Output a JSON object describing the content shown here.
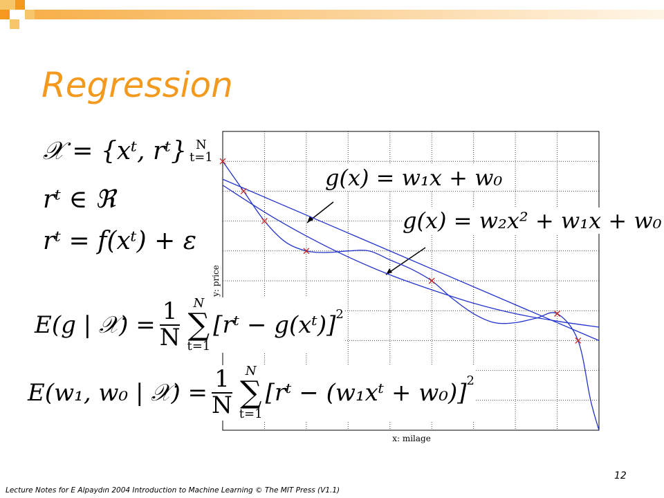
{
  "header": {
    "title": "Regression"
  },
  "formulas": {
    "sample": {
      "lhs": "𝒳 = {xᵗ, rᵗ}",
      "sup": "N",
      "sub": "t=1"
    },
    "real": "rᵗ ∈ ℜ",
    "noise": "rᵗ = f(xᵗ) + ε",
    "error": {
      "lhs": "E(g | 𝒳) =",
      "num": "1",
      "den": "N",
      "sum_top": "N",
      "sum": "∑",
      "sum_bottom": "t=1",
      "body": "[rᵗ − g(xᵗ)]",
      "power": "2"
    },
    "error_linear": {
      "lhs": "E(w₁, w₀ | 𝒳) =",
      "num": "1",
      "den": "N",
      "sum_top": "N",
      "sum": "∑",
      "sum_bottom": "t=1",
      "body": "[rᵗ − (w₁xᵗ + w₀)]",
      "power": "2"
    }
  },
  "chart_data": {
    "type": "line",
    "xlabel": "x: milage",
    "ylabel": "y: price",
    "annotations": [
      "g(x) = w₁x + w₀",
      "g(x) = w₂x² + w₁x + w₀"
    ],
    "xlim": [
      0,
      9
    ],
    "ylim": [
      0,
      10
    ],
    "xticks": [
      0,
      1,
      2,
      3,
      4,
      5,
      6,
      7,
      8,
      9
    ],
    "yticks": [
      0,
      1,
      2,
      3,
      4,
      5,
      6,
      7,
      8,
      9,
      10
    ],
    "grid": true,
    "points": {
      "color": "#cc2222",
      "x": [
        0,
        0.5,
        1,
        2,
        5,
        8,
        8.5
      ],
      "values": [
        9,
        8,
        7,
        6,
        5,
        3.9,
        3
      ]
    },
    "series": [
      {
        "color": "#2233cc",
        "x": [
          0,
          9
        ],
        "values": [
          8.4,
          3.0
        ]
      },
      {
        "color": "#2233cc",
        "x": [
          0,
          1,
          2,
          3,
          4,
          5,
          6,
          7,
          8,
          9
        ],
        "values": [
          8.2,
          7.3,
          6.5,
          5.8,
          5.2,
          4.7,
          4.25,
          3.9,
          3.65,
          3.45
        ]
      },
      {
        "color": "#2233cc",
        "x": [
          0,
          0.5,
          1,
          1.5,
          2,
          2.5,
          3,
          3.5,
          4,
          4.5,
          5,
          5.5,
          6,
          6.5,
          7,
          7.5,
          8,
          8.5,
          8.8,
          9
        ],
        "values": [
          9,
          8,
          7,
          6.3,
          6,
          5.95,
          6,
          6,
          5.7,
          5.4,
          5,
          4.4,
          3.9,
          3.6,
          3.6,
          3.75,
          3.9,
          3,
          1,
          0
        ]
      }
    ]
  },
  "footer": {
    "note": "Lecture Notes for E Alpaydın 2004 Introduction to Machine Learning © The MIT Press (V1.1)",
    "page": "12"
  }
}
